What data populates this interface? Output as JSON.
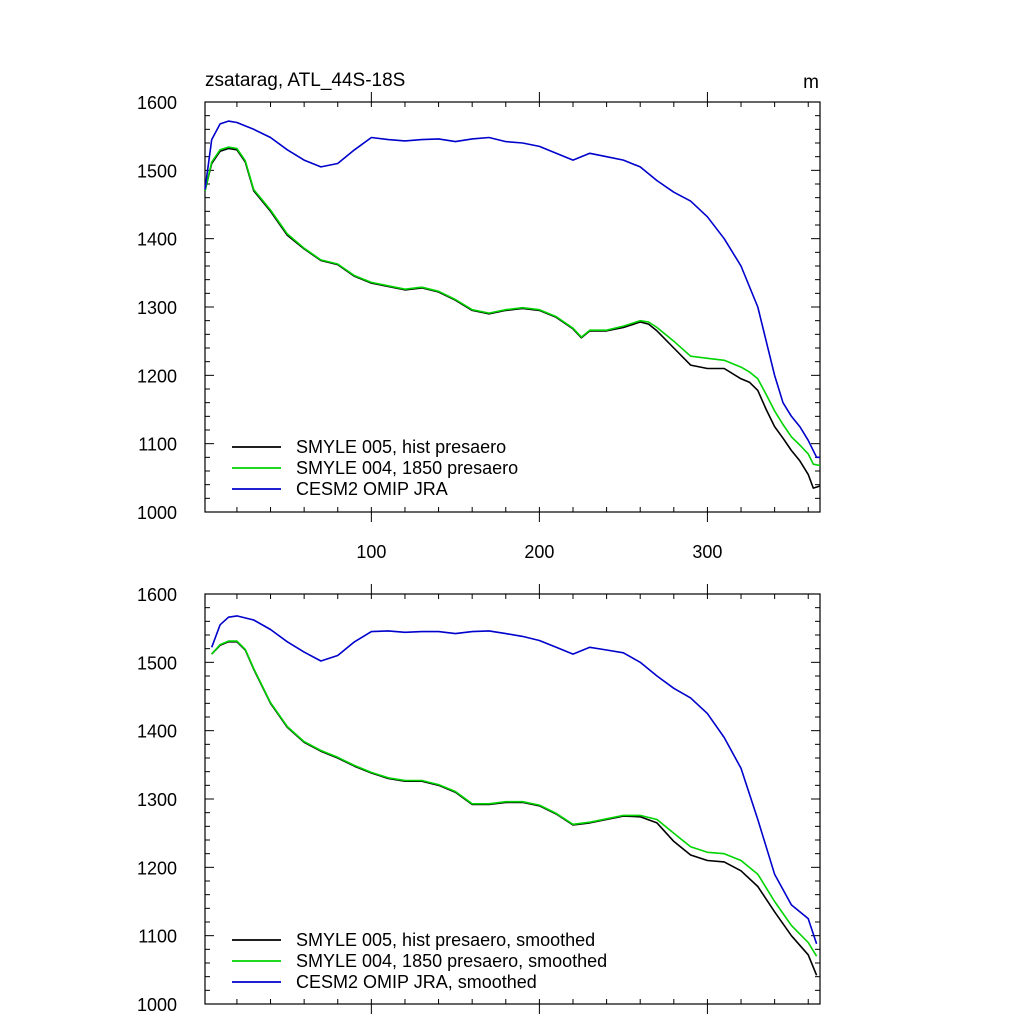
{
  "chart_data": [
    {
      "type": "line",
      "title": "zsatarag, ATL_44S-18S",
      "units": "m",
      "xlim": [
        1,
        367
      ],
      "ylim": [
        1000,
        1600
      ],
      "xticks": [
        100,
        200,
        300
      ],
      "xtick_labels": [
        "100",
        "200",
        "300"
      ],
      "yticks": [
        1000,
        1100,
        1200,
        1300,
        1400,
        1500,
        1600
      ],
      "ytick_labels": [
        "1000",
        "1100",
        "1200",
        "1300",
        "1400",
        "1500",
        "1600"
      ],
      "legend_position": "bottom-left",
      "series": [
        {
          "name": "SMYLE 005, hist presaero",
          "color": "#000000",
          "x": [
            1,
            5,
            10,
            15,
            20,
            25,
            30,
            40,
            50,
            60,
            70,
            80,
            90,
            100,
            110,
            120,
            130,
            140,
            150,
            160,
            170,
            180,
            190,
            200,
            210,
            220,
            225,
            230,
            240,
            250,
            260,
            265,
            270,
            280,
            290,
            300,
            310,
            320,
            325,
            330,
            335,
            340,
            345,
            350,
            355,
            360,
            363,
            367
          ],
          "y": [
            1470,
            1510,
            1528,
            1532,
            1530,
            1512,
            1470,
            1440,
            1405,
            1385,
            1368,
            1362,
            1345,
            1335,
            1330,
            1325,
            1328,
            1322,
            1310,
            1295,
            1290,
            1295,
            1298,
            1295,
            1285,
            1268,
            1255,
            1265,
            1265,
            1270,
            1278,
            1275,
            1265,
            1240,
            1215,
            1210,
            1210,
            1195,
            1190,
            1178,
            1150,
            1125,
            1108,
            1090,
            1075,
            1055,
            1035,
            1038
          ]
        },
        {
          "name": "SMYLE 004, 1850 presaero",
          "color": "#00d400",
          "x": [
            1,
            5,
            10,
            15,
            20,
            25,
            30,
            40,
            50,
            60,
            70,
            80,
            90,
            100,
            110,
            120,
            130,
            140,
            150,
            160,
            170,
            180,
            190,
            200,
            210,
            220,
            225,
            230,
            240,
            250,
            260,
            265,
            270,
            280,
            290,
            300,
            310,
            320,
            325,
            330,
            335,
            340,
            345,
            350,
            355,
            360,
            363,
            367
          ],
          "y": [
            1470,
            1512,
            1530,
            1534,
            1532,
            1514,
            1472,
            1442,
            1407,
            1386,
            1369,
            1363,
            1346,
            1336,
            1331,
            1326,
            1329,
            1323,
            1311,
            1296,
            1291,
            1296,
            1299,
            1296,
            1286,
            1269,
            1256,
            1266,
            1266,
            1272,
            1280,
            1278,
            1270,
            1250,
            1228,
            1225,
            1222,
            1212,
            1205,
            1195,
            1172,
            1148,
            1128,
            1110,
            1098,
            1085,
            1070,
            1068
          ]
        },
        {
          "name": "CESM2 OMIP JRA",
          "color": "#0000cc",
          "x": [
            1,
            5,
            10,
            15,
            20,
            30,
            40,
            50,
            60,
            70,
            80,
            90,
            100,
            110,
            120,
            130,
            140,
            150,
            160,
            170,
            180,
            190,
            200,
            210,
            220,
            230,
            240,
            250,
            260,
            270,
            280,
            290,
            300,
            310,
            320,
            330,
            335,
            340,
            345,
            350,
            355,
            360,
            365,
            367
          ],
          "y": [
            1472,
            1545,
            1568,
            1572,
            1570,
            1560,
            1548,
            1530,
            1515,
            1505,
            1510,
            1530,
            1548,
            1545,
            1543,
            1545,
            1546,
            1542,
            1546,
            1548,
            1542,
            1540,
            1535,
            1525,
            1515,
            1525,
            1520,
            1515,
            1505,
            1485,
            1468,
            1455,
            1432,
            1400,
            1360,
            1300,
            1250,
            1200,
            1160,
            1140,
            1125,
            1105,
            1080,
            1080
          ]
        }
      ]
    },
    {
      "type": "line",
      "xlim": [
        1,
        367
      ],
      "ylim": [
        1000,
        1600
      ],
      "xticks": [
        100,
        200,
        300
      ],
      "yticks": [
        1000,
        1100,
        1200,
        1300,
        1400,
        1500,
        1600
      ],
      "ytick_labels": [
        "1000",
        "1100",
        "1200",
        "1300",
        "1400",
        "1500",
        "1600"
      ],
      "legend_position": "bottom-left",
      "series": [
        {
          "name": "SMYLE 005, hist presaero, smoothed",
          "color": "#000000",
          "x": [
            5,
            10,
            15,
            20,
            25,
            30,
            40,
            50,
            60,
            70,
            80,
            90,
            100,
            110,
            120,
            130,
            140,
            150,
            160,
            170,
            180,
            190,
            200,
            210,
            220,
            230,
            240,
            250,
            260,
            270,
            280,
            290,
            300,
            310,
            320,
            330,
            340,
            350,
            360,
            365
          ],
          "y": [
            1512,
            1525,
            1530,
            1530,
            1518,
            1490,
            1440,
            1405,
            1383,
            1370,
            1360,
            1348,
            1338,
            1330,
            1326,
            1326,
            1320,
            1310,
            1292,
            1292,
            1295,
            1295,
            1290,
            1278,
            1262,
            1265,
            1270,
            1275,
            1274,
            1265,
            1238,
            1218,
            1210,
            1208,
            1195,
            1172,
            1135,
            1100,
            1072,
            1042
          ]
        },
        {
          "name": "SMYLE 004, 1850 presaero, smoothed",
          "color": "#00d400",
          "x": [
            5,
            10,
            15,
            20,
            25,
            30,
            40,
            50,
            60,
            70,
            80,
            90,
            100,
            110,
            120,
            130,
            140,
            150,
            160,
            170,
            180,
            190,
            200,
            210,
            220,
            230,
            240,
            250,
            260,
            270,
            280,
            290,
            300,
            310,
            320,
            330,
            340,
            350,
            360,
            365
          ],
          "y": [
            1512,
            1526,
            1531,
            1531,
            1519,
            1491,
            1441,
            1406,
            1384,
            1371,
            1361,
            1349,
            1339,
            1331,
            1327,
            1327,
            1321,
            1311,
            1293,
            1293,
            1296,
            1296,
            1291,
            1279,
            1263,
            1266,
            1271,
            1276,
            1276,
            1270,
            1250,
            1230,
            1222,
            1220,
            1210,
            1190,
            1150,
            1115,
            1090,
            1070
          ]
        },
        {
          "name": "CESM2 OMIP JRA, smoothed",
          "color": "#0000cc",
          "x": [
            5,
            10,
            15,
            20,
            30,
            40,
            50,
            60,
            70,
            80,
            90,
            100,
            110,
            120,
            130,
            140,
            150,
            160,
            170,
            180,
            190,
            200,
            210,
            220,
            230,
            240,
            250,
            260,
            270,
            280,
            290,
            300,
            310,
            320,
            330,
            340,
            350,
            360,
            365
          ],
          "y": [
            1522,
            1555,
            1566,
            1568,
            1562,
            1548,
            1530,
            1515,
            1502,
            1510,
            1530,
            1545,
            1546,
            1544,
            1545,
            1545,
            1542,
            1545,
            1546,
            1542,
            1538,
            1532,
            1522,
            1512,
            1522,
            1518,
            1514,
            1500,
            1480,
            1462,
            1448,
            1425,
            1390,
            1345,
            1270,
            1190,
            1145,
            1125,
            1088
          ]
        }
      ]
    }
  ]
}
